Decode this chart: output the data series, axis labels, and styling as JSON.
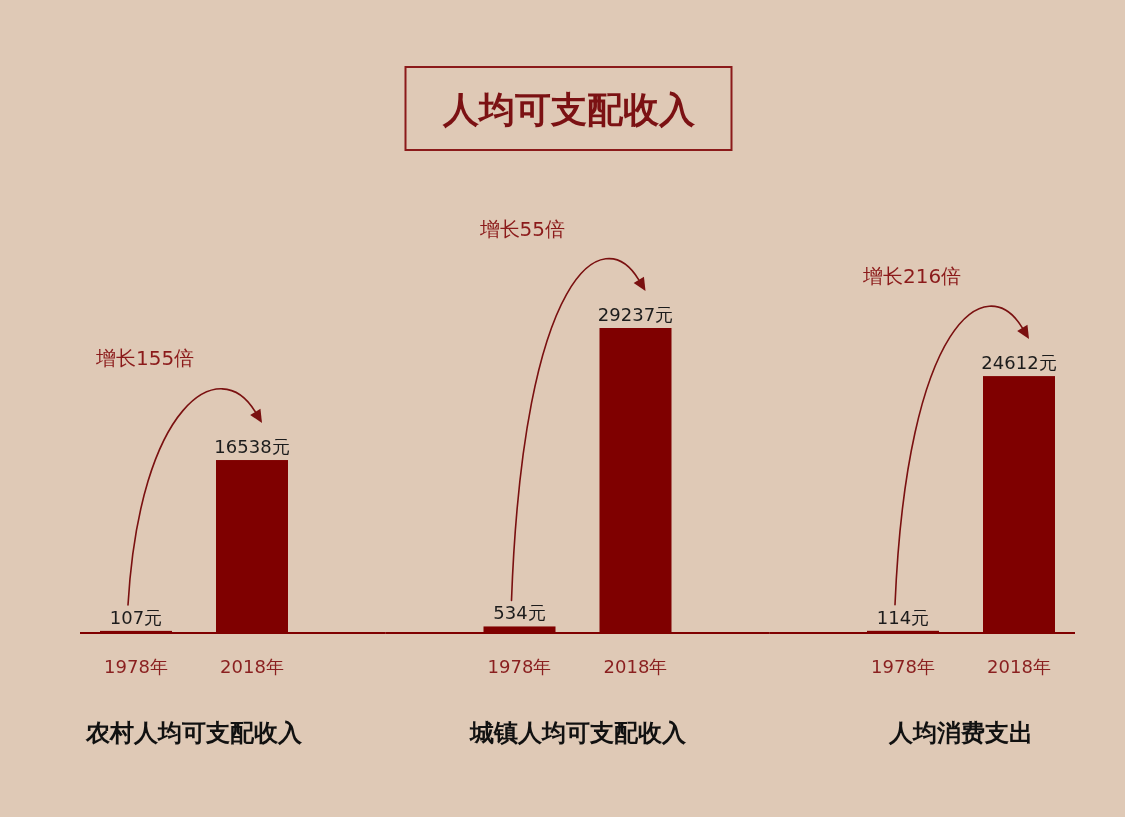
{
  "chart_data": [
    {
      "type": "other",
      "title": "人均可支配收入"
    },
    {
      "type": "bar",
      "categories": [
        "1978年",
        "2018年"
      ],
      "values": [
        107,
        16538
      ],
      "value_labels": [
        "107元",
        "16538元"
      ],
      "color": "#7f0000",
      "xlabel": "农村人均可支配收入",
      "annotations": [
        "增长155倍"
      ]
    },
    {
      "type": "bar",
      "categories": [
        "1978年",
        "2018年"
      ],
      "values": [
        534,
        29237
      ],
      "value_labels": [
        "534元",
        "29237元"
      ],
      "color": "#7f0000",
      "xlabel": "城镇人均可支配收入",
      "annotations": [
        "增长55倍"
      ]
    },
    {
      "type": "bar",
      "categories": [
        "1978年",
        "2018年"
      ],
      "values": [
        114,
        24612
      ],
      "value_labels": [
        "114元",
        "24612元"
      ],
      "color": "#7f0000",
      "xlabel": "人均消费支出",
      "annotations": [
        "增长216倍"
      ]
    }
  ]
}
